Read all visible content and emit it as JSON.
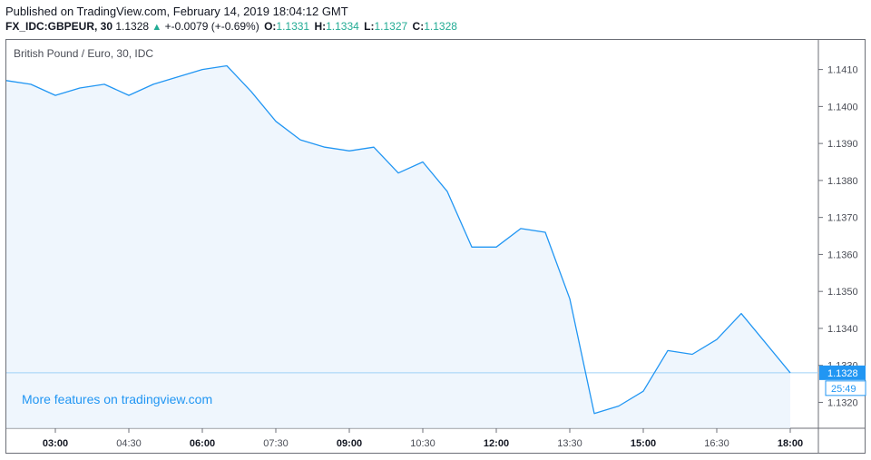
{
  "header": {
    "published": "Published on TradingView.com, February 14, 2019 18:04:12 GMT",
    "symbol": "FX_IDC:GBPEUR, 30",
    "last": "1.1328",
    "arrow": "▲",
    "change": "+-0.0079 (+-0.69%)",
    "o_label": "O:",
    "o_value": "1.1331",
    "h_label": "H:",
    "h_value": "1.1334",
    "l_label": "L:",
    "l_value": "1.1327",
    "c_label": "C:",
    "c_value": "1.1328"
  },
  "series_title": "British Pound / Euro, 30, IDC",
  "watermark": "More features on tradingview.com",
  "price_badge": {
    "value": "1.1328",
    "countdown": "25:49"
  },
  "colors": {
    "line": "#2196f3",
    "fill": "#eaf3fc",
    "badge": "#2196f3"
  },
  "chart_data": {
    "type": "area",
    "title": "British Pound / Euro, 30, IDC",
    "xlabel": "",
    "ylabel": "",
    "x_ticks": [
      {
        "label": "03:00",
        "bold": true
      },
      {
        "label": "04:30",
        "bold": false
      },
      {
        "label": "06:00",
        "bold": true
      },
      {
        "label": "07:30",
        "bold": false
      },
      {
        "label": "09:00",
        "bold": true
      },
      {
        "label": "10:30",
        "bold": false
      },
      {
        "label": "12:00",
        "bold": true
      },
      {
        "label": "13:30",
        "bold": false
      },
      {
        "label": "15:00",
        "bold": true
      },
      {
        "label": "16:30",
        "bold": false
      },
      {
        "label": "18:00",
        "bold": true
      }
    ],
    "y_ticks": [
      "1.1320",
      "1.1330",
      "1.1340",
      "1.1350",
      "1.1360",
      "1.1370",
      "1.1380",
      "1.1390",
      "1.1400",
      "1.1410"
    ],
    "ylim": [
      1.1313,
      1.1418
    ],
    "x": [
      "02:00",
      "02:30",
      "03:00",
      "03:30",
      "04:00",
      "04:30",
      "05:00",
      "05:30",
      "06:00",
      "06:30",
      "07:00",
      "07:30",
      "08:00",
      "08:30",
      "09:00",
      "09:30",
      "10:00",
      "10:30",
      "11:00",
      "11:30",
      "12:00",
      "12:30",
      "13:00",
      "13:30",
      "14:00",
      "14:30",
      "15:00",
      "15:30",
      "16:00",
      "16:30",
      "17:00",
      "17:30",
      "18:00"
    ],
    "values": [
      1.1407,
      1.1406,
      1.1403,
      1.1405,
      1.1406,
      1.1403,
      1.1406,
      1.1408,
      1.141,
      1.1411,
      1.1404,
      1.1396,
      1.1391,
      1.1389,
      1.1388,
      1.1389,
      1.1382,
      1.1385,
      1.1377,
      1.1362,
      1.1362,
      1.1367,
      1.1366,
      1.1348,
      1.1317,
      1.1319,
      1.1323,
      1.1334,
      1.1333,
      1.1337,
      1.1344,
      1.1336,
      1.1328
    ],
    "current_price": 1.1328,
    "grid": false,
    "legend": "none"
  }
}
